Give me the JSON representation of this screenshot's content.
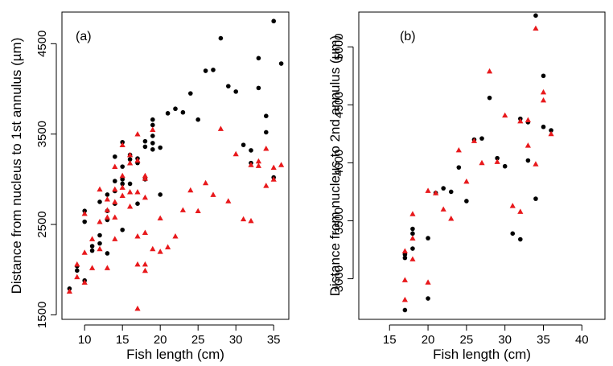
{
  "chart_data": [
    {
      "type": "scatter",
      "panel_label": "(a)",
      "xlabel": "Fish length (cm)",
      "ylabel": "Distance from nucleus to 1st annulus (µm)",
      "xlim": [
        7,
        37
      ],
      "ylim": [
        1450,
        4850
      ],
      "x_ticks": [
        10,
        15,
        20,
        25,
        30,
        35
      ],
      "y_ticks": [
        1500,
        2500,
        3500,
        4500
      ],
      "grid": false,
      "legend": "none",
      "series": [
        {
          "marker": "circle",
          "color": "#000000",
          "points": [
            [
              8,
              1790
            ],
            [
              9,
              1990
            ],
            [
              9,
              2040
            ],
            [
              10,
              2530
            ],
            [
              10,
              2650
            ],
            [
              10,
              1880
            ],
            [
              11,
              2210
            ],
            [
              11,
              2260
            ],
            [
              12,
              2290
            ],
            [
              12,
              2380
            ],
            [
              12,
              2750
            ],
            [
              13,
              2550
            ],
            [
              13,
              2650
            ],
            [
              13,
              2830
            ],
            [
              13,
              2180
            ],
            [
              14,
              2730
            ],
            [
              14,
              2870
            ],
            [
              14,
              2980
            ],
            [
              14,
              3250
            ],
            [
              15,
              2440
            ],
            [
              15,
              2950
            ],
            [
              15,
              3000
            ],
            [
              15,
              3140
            ],
            [
              15,
              3410
            ],
            [
              16,
              2950
            ],
            [
              16,
              3220
            ],
            [
              16,
              3270
            ],
            [
              17,
              2730
            ],
            [
              17,
              3180
            ],
            [
              17,
              3230
            ],
            [
              18,
              3000
            ],
            [
              18,
              3360
            ],
            [
              18,
              3420
            ],
            [
              19,
              3330
            ],
            [
              19,
              3400
            ],
            [
              19,
              3480
            ],
            [
              19,
              3600
            ],
            [
              19,
              3660
            ],
            [
              20,
              3350
            ],
            [
              20,
              2830
            ],
            [
              21,
              3730
            ],
            [
              22,
              3780
            ],
            [
              23,
              3740
            ],
            [
              24,
              3950
            ],
            [
              25,
              3660
            ],
            [
              26,
              4200
            ],
            [
              27,
              4210
            ],
            [
              28,
              4560
            ],
            [
              29,
              4030
            ],
            [
              30,
              3970
            ],
            [
              31,
              3380
            ],
            [
              32,
              3320
            ],
            [
              32,
              3180
            ],
            [
              33,
              4340
            ],
            [
              33,
              4010
            ],
            [
              34,
              3700
            ],
            [
              34,
              3520
            ],
            [
              35,
              3020
            ],
            [
              35,
              4750
            ],
            [
              36,
              4280
            ]
          ]
        },
        {
          "marker": "triangle",
          "color": "#e8191c",
          "points": [
            [
              8,
              1760
            ],
            [
              9,
              1920
            ],
            [
              9,
              2060
            ],
            [
              10,
              1860
            ],
            [
              10,
              2190
            ],
            [
              10,
              2620
            ],
            [
              11,
              2020
            ],
            [
              11,
              2340
            ],
            [
              12,
              2230
            ],
            [
              12,
              2530
            ],
            [
              12,
              2890
            ],
            [
              13,
              2020
            ],
            [
              13,
              2580
            ],
            [
              13,
              2660
            ],
            [
              13,
              2780
            ],
            [
              14,
              2340
            ],
            [
              14,
              2580
            ],
            [
              14,
              2750
            ],
            [
              14,
              2890
            ],
            [
              14,
              3140
            ],
            [
              15,
              2820
            ],
            [
              15,
              2910
            ],
            [
              15,
              3040
            ],
            [
              15,
              3380
            ],
            [
              16,
              2700
            ],
            [
              16,
              2860
            ],
            [
              16,
              3180
            ],
            [
              16,
              3270
            ],
            [
              17,
              1570
            ],
            [
              17,
              2060
            ],
            [
              17,
              2370
            ],
            [
              17,
              2860
            ],
            [
              17,
              3210
            ],
            [
              17,
              3500
            ],
            [
              18,
              1990
            ],
            [
              18,
              2060
            ],
            [
              18,
              2410
            ],
            [
              18,
              2800
            ],
            [
              18,
              3010
            ],
            [
              18,
              3040
            ],
            [
              19,
              2230
            ],
            [
              19,
              3550
            ],
            [
              20,
              2200
            ],
            [
              20,
              2570
            ],
            [
              21,
              2250
            ],
            [
              22,
              2370
            ],
            [
              23,
              2660
            ],
            [
              24,
              2880
            ],
            [
              25,
              2650
            ],
            [
              26,
              2960
            ],
            [
              27,
              2830
            ],
            [
              28,
              3560
            ],
            [
              29,
              2760
            ],
            [
              30,
              3280
            ],
            [
              31,
              2560
            ],
            [
              32,
              2540
            ],
            [
              32,
              3160
            ],
            [
              33,
              3150
            ],
            [
              33,
              3200
            ],
            [
              34,
              2930
            ],
            [
              34,
              3340
            ],
            [
              35,
              3000
            ],
            [
              35,
              3130
            ],
            [
              36,
              3160
            ]
          ]
        }
      ]
    },
    {
      "type": "scatter",
      "panel_label": "(b)",
      "xlabel": "Fish length (cm)",
      "ylabel": "Distance from nucleus to 2nd annulus (µm)",
      "xlim": [
        11,
        43
      ],
      "ylim": [
        2650,
        5300
      ],
      "x_ticks": [
        15,
        20,
        25,
        30,
        35,
        40
      ],
      "y_ticks": [
        3000,
        3500,
        4000,
        4500,
        5000
      ],
      "grid": false,
      "legend": "none",
      "series": [
        {
          "marker": "circle",
          "color": "#000000",
          "points": [
            [
              17,
              2730
            ],
            [
              17,
              3180
            ],
            [
              17,
              3210
            ],
            [
              18,
              3260
            ],
            [
              18,
              3390
            ],
            [
              18,
              3430
            ],
            [
              20,
              2830
            ],
            [
              20,
              3350
            ],
            [
              21,
              3740
            ],
            [
              22,
              3780
            ],
            [
              23,
              3750
            ],
            [
              24,
              3960
            ],
            [
              25,
              3670
            ],
            [
              26,
              4200
            ],
            [
              27,
              4210
            ],
            [
              28,
              4560
            ],
            [
              29,
              4040
            ],
            [
              30,
              3970
            ],
            [
              31,
              3390
            ],
            [
              32,
              3340
            ],
            [
              32,
              4380
            ],
            [
              33,
              4350
            ],
            [
              33,
              4020
            ],
            [
              34,
              3690
            ],
            [
              34,
              5270
            ],
            [
              35,
              4750
            ],
            [
              35,
              4310
            ],
            [
              36,
              4280
            ]
          ]
        },
        {
          "marker": "triangle",
          "color": "#e8191c",
          "points": [
            [
              17,
              2820
            ],
            [
              17,
              2990
            ],
            [
              17,
              3240
            ],
            [
              18,
              3170
            ],
            [
              18,
              3350
            ],
            [
              18,
              3560
            ],
            [
              20,
              2970
            ],
            [
              20,
              3760
            ],
            [
              21,
              3740
            ],
            [
              22,
              3600
            ],
            [
              23,
              3520
            ],
            [
              24,
              4110
            ],
            [
              25,
              3840
            ],
            [
              26,
              4190
            ],
            [
              27,
              4000
            ],
            [
              28,
              4790
            ],
            [
              29,
              4010
            ],
            [
              30,
              4410
            ],
            [
              31,
              3630
            ],
            [
              32,
              3580
            ],
            [
              32,
              4360
            ],
            [
              33,
              4150
            ],
            [
              33,
              4370
            ],
            [
              34,
              3990
            ],
            [
              34,
              5160
            ],
            [
              35,
              4540
            ],
            [
              35,
              4610
            ],
            [
              36,
              4250
            ]
          ]
        }
      ]
    }
  ]
}
